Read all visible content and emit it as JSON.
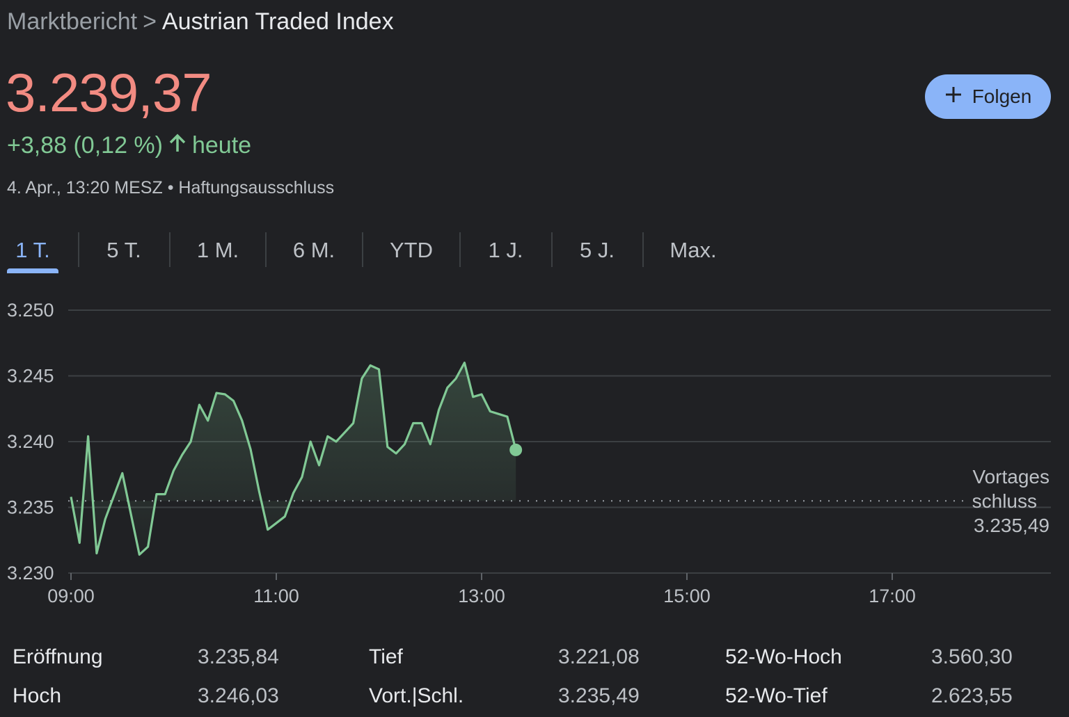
{
  "breadcrumb": {
    "parent": "Marktbericht",
    "separator": ">",
    "current": "Austrian Traded Index"
  },
  "price": "3.239,37",
  "change": {
    "text": "+3,88 (0,12 %)",
    "arrow": "arrow-up-icon",
    "period": "heute"
  },
  "meta": {
    "datetime": "4. Apr., 13:20 MESZ",
    "separator": "•",
    "disclaimer": "Haftungsausschluss"
  },
  "follow_button": {
    "label": "Folgen",
    "icon": "plus-icon"
  },
  "range_tabs": [
    "1 T.",
    "5 T.",
    "1 M.",
    "6 M.",
    "YTD",
    "1 J.",
    "5 J.",
    "Max."
  ],
  "active_tab": "1 T.",
  "colors": {
    "background": "#202124",
    "price": "#f28b82",
    "positive": "#81c995",
    "accent": "#8ab4f8",
    "line": "#81c995"
  },
  "chart_data": {
    "type": "line",
    "y_ticks": [
      "3.250",
      "3.245",
      "3.240",
      "3.235",
      "3.230"
    ],
    "x_ticks": [
      "09:00",
      "11:00",
      "13:00",
      "15:00",
      "17:00"
    ],
    "ylim": [
      3230,
      3250
    ],
    "xlim": [
      "09:00",
      "18:35"
    ],
    "grid": true,
    "previous_close": {
      "label_line1": "Vortages",
      "label_line2": "schluss",
      "value": 3235.49,
      "value_text": "3.235,49"
    },
    "series": [
      {
        "x": [
          "09:00",
          "09:05",
          "09:10",
          "09:15",
          "09:20",
          "09:30",
          "09:40",
          "09:45",
          "09:50",
          "09:55",
          "10:00",
          "10:05",
          "10:10",
          "10:15",
          "10:20",
          "10:25",
          "10:30",
          "10:35",
          "10:40",
          "10:45",
          "10:50",
          "10:55",
          "11:00",
          "11:05",
          "11:10",
          "11:15",
          "11:20",
          "11:25",
          "11:30",
          "11:35",
          "11:40",
          "11:45",
          "11:50",
          "11:55",
          "12:00",
          "12:05",
          "12:10",
          "12:15",
          "12:20",
          "12:25",
          "12:30",
          "12:35",
          "12:40",
          "12:45",
          "12:50",
          "12:55",
          "13:00",
          "13:05",
          "13:10",
          "13:15",
          "13:20"
        ],
        "values": [
          3235.8,
          3232.3,
          3240.4,
          3231.5,
          3234.1,
          3237.6,
          3231.4,
          3232.0,
          3236.0,
          3236.0,
          3237.8,
          3239.0,
          3240.0,
          3242.8,
          3241.6,
          3243.7,
          3243.6,
          3243.1,
          3241.6,
          3239.4,
          3236.2,
          3233.3,
          3233.8,
          3234.3,
          3236.1,
          3237.3,
          3240.0,
          3238.2,
          3240.4,
          3240.0,
          3240.7,
          3241.4,
          3244.8,
          3245.8,
          3245.5,
          3239.6,
          3239.1,
          3239.8,
          3241.4,
          3241.4,
          3239.8,
          3242.4,
          3244.1,
          3244.8,
          3246.0,
          3243.4,
          3243.6,
          3242.3,
          3242.1,
          3241.9,
          3239.37
        ]
      }
    ]
  },
  "stats": [
    {
      "label": "Eröffnung",
      "value": "3.235,84"
    },
    {
      "label": "Hoch",
      "value": "3.246,03"
    },
    {
      "label": "Tief",
      "value": "3.221,08"
    },
    {
      "label": "Vort.|Schl.",
      "value": "3.235,49"
    },
    {
      "label": "52-Wo-Hoch",
      "value": "3.560,30"
    },
    {
      "label": "52-Wo-Tief",
      "value": "2.623,55"
    }
  ]
}
